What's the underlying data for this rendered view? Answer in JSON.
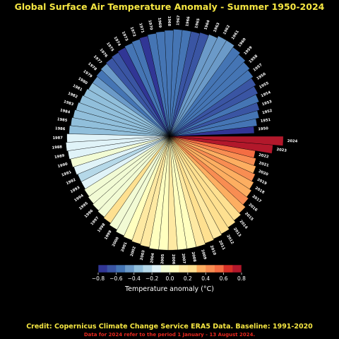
{
  "chart_data": {
    "type": "polar-bar",
    "title": "Global Surface Air Temperature Anomaly - Summer 1950-2024",
    "x": [
      1950,
      1951,
      1952,
      1953,
      1954,
      1955,
      1956,
      1957,
      1958,
      1959,
      1960,
      1961,
      1962,
      1963,
      1964,
      1965,
      1966,
      1967,
      1968,
      1969,
      1970,
      1971,
      1972,
      1973,
      1974,
      1975,
      1976,
      1977,
      1978,
      1979,
      1980,
      1981,
      1982,
      1983,
      1984,
      1985,
      1986,
      1987,
      1988,
      1989,
      1990,
      1991,
      1992,
      1993,
      1994,
      1995,
      1996,
      1997,
      1998,
      1999,
      2000,
      2001,
      2002,
      2003,
      2004,
      2005,
      2006,
      2007,
      2008,
      2009,
      2010,
      2011,
      2012,
      2013,
      2014,
      2015,
      2016,
      2017,
      2018,
      2019,
      2020,
      2021,
      2022,
      2023,
      2024
    ],
    "values": [
      -0.75,
      -0.6,
      -0.6,
      -0.62,
      -0.6,
      -0.62,
      -0.65,
      -0.58,
      -0.55,
      -0.55,
      -0.52,
      -0.48,
      -0.5,
      -0.5,
      -0.65,
      -0.65,
      -0.58,
      -0.52,
      -0.6,
      -0.55,
      -0.6,
      -0.72,
      -0.6,
      -0.55,
      -0.72,
      -0.68,
      -0.7,
      -0.5,
      -0.55,
      -0.45,
      -0.38,
      -0.35,
      -0.4,
      -0.35,
      -0.4,
      -0.38,
      -0.35,
      -0.18,
      -0.12,
      -0.18,
      -0.1,
      -0.12,
      -0.22,
      -0.2,
      -0.08,
      -0.02,
      -0.08,
      -0.02,
      0.22,
      -0.05,
      -0.02,
      0.08,
      0.1,
      0.12,
      0.03,
      0.07,
      0.1,
      0.08,
      0.05,
      0.15,
      0.2,
      0.18,
      0.22,
      0.2,
      0.22,
      0.32,
      0.4,
      0.35,
      0.32,
      0.42,
      0.38,
      0.42,
      0.5,
      0.7,
      0.72
    ],
    "radii": [
      0.76,
      0.79,
      0.82,
      0.84,
      0.86,
      0.88,
      0.9,
      0.92,
      0.94,
      0.96,
      0.98,
      1.0,
      1.0,
      0.98,
      0.97,
      0.96,
      0.96,
      0.96,
      0.95,
      0.94,
      0.93,
      0.92,
      0.91,
      0.9,
      0.89,
      0.88,
      0.87,
      0.86,
      0.85,
      0.84,
      0.84,
      0.85,
      0.86,
      0.87,
      0.88,
      0.89,
      0.9,
      0.92,
      0.93,
      0.92,
      0.91,
      0.9,
      0.89,
      0.89,
      0.9,
      0.91,
      0.92,
      0.93,
      0.94,
      0.96,
      0.98,
      0.99,
      1.0,
      1.01,
      1.02,
      1.02,
      1.02,
      1.02,
      1.02,
      1.02,
      1.01,
      1.0,
      0.99,
      0.97,
      0.95,
      0.93,
      0.9,
      0.88,
      0.86,
      0.84,
      0.82,
      0.8,
      0.78,
      0.93,
      1.02
    ],
    "colorbar": {
      "label": "Temperature anomaly (°C)",
      "min": -0.8,
      "max": 0.8,
      "step": 0.1,
      "ticks": [
        "−0.8",
        "−0.6",
        "−0.4",
        "−0.2",
        "0.0",
        "0.2",
        "0.4",
        "0.6",
        "0.8"
      ],
      "colors": [
        "#313695",
        "#3a55a3",
        "#4575b4",
        "#6b9ac8",
        "#91bfdb",
        "#b5d8e8",
        "#e0f3f8",
        "#f2fbd4",
        "#ffffbf",
        "#fee9a2",
        "#fee090",
        "#fdae61",
        "#f88d52",
        "#f46d43",
        "#d73027",
        "#b2182b"
      ]
    }
  },
  "footer": {
    "credit": "Credit: Copernicus Climate Change Service ERA5 Data. Baseline: 1991-2020",
    "note": "Data for 2024 refer to the period 1 January - 13 August 2024."
  },
  "colors": {
    "title": "#f5e642",
    "credit": "#f5e642",
    "note": "#e8281e",
    "background": "#000000"
  }
}
